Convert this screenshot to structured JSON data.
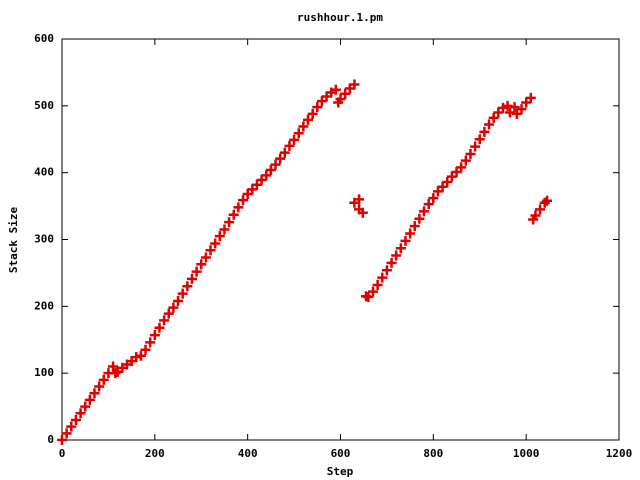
{
  "chart_data": {
    "type": "scatter",
    "title": "rushhour.1.pm",
    "x_label": "Step",
    "y_label": "Stack Size",
    "color": "#e00000",
    "xlim": [
      0,
      1200
    ],
    "xticks": [
      0,
      200,
      400,
      600,
      800,
      1000,
      1200
    ],
    "ylim": [
      0,
      600
    ],
    "yticks": [
      0,
      100,
      200,
      300,
      400,
      500,
      600
    ],
    "x": [
      0,
      10,
      20,
      30,
      40,
      50,
      60,
      70,
      80,
      90,
      100,
      110,
      115,
      120,
      130,
      140,
      150,
      160,
      170,
      180,
      190,
      200,
      210,
      220,
      230,
      240,
      250,
      260,
      270,
      280,
      290,
      300,
      310,
      320,
      330,
      340,
      350,
      360,
      370,
      380,
      390,
      400,
      410,
      420,
      430,
      440,
      450,
      460,
      470,
      480,
      490,
      500,
      510,
      520,
      530,
      540,
      550,
      560,
      570,
      580,
      590,
      595,
      600,
      610,
      620,
      630,
      630,
      640,
      640,
      648,
      655,
      660,
      670,
      680,
      690,
      700,
      710,
      720,
      730,
      740,
      750,
      760,
      770,
      780,
      790,
      800,
      810,
      820,
      830,
      840,
      850,
      860,
      870,
      880,
      890,
      900,
      910,
      920,
      930,
      940,
      950,
      960,
      965,
      975,
      980,
      990,
      1000,
      1010,
      1015,
      1020,
      1030,
      1040,
      1045
    ],
    "values": [
      0,
      10,
      20,
      30,
      40,
      50,
      60,
      70,
      80,
      90,
      100,
      110,
      100,
      102,
      108,
      113,
      118,
      124,
      126,
      135,
      146,
      157,
      168,
      179,
      189,
      198,
      208,
      219,
      230,
      241,
      252,
      263,
      273,
      284,
      294,
      305,
      315,
      326,
      337,
      348,
      359,
      368,
      375,
      382,
      389,
      396,
      404,
      412,
      421,
      430,
      440,
      449,
      459,
      469,
      479,
      488,
      498,
      507,
      514,
      520,
      524,
      505,
      510,
      518,
      526,
      532,
      355,
      360,
      345,
      340,
      215,
      214,
      222,
      232,
      243,
      254,
      265,
      276,
      287,
      298,
      309,
      320,
      331,
      342,
      353,
      362,
      372,
      379,
      386,
      394,
      401,
      408,
      418,
      428,
      439,
      450,
      461,
      472,
      482,
      490,
      497,
      500,
      490,
      498,
      488,
      495,
      505,
      512,
      330,
      336,
      345,
      355,
      358
    ]
  }
}
